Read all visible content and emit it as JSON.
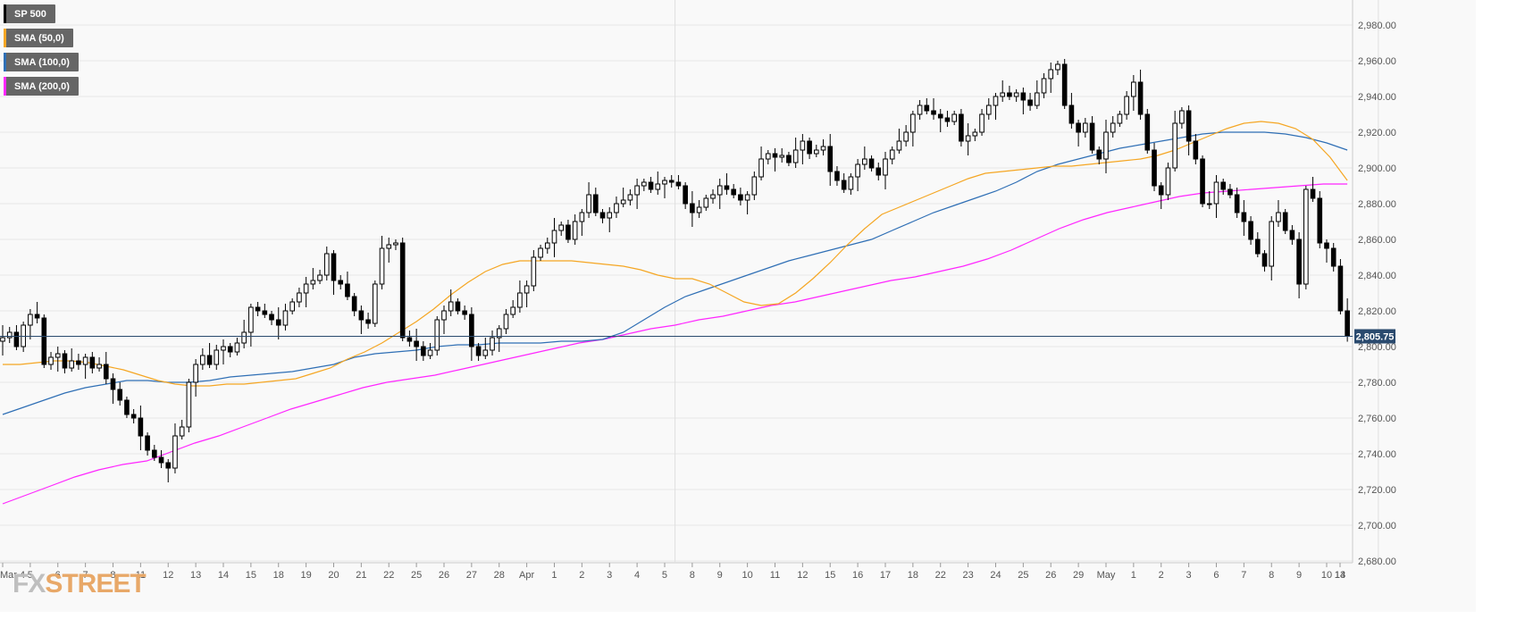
{
  "logo": {
    "fx": "FX",
    "street": "STREET"
  },
  "colors": {
    "candle_up_fill": "#ffffff",
    "candle_down_fill": "#000000",
    "sma50": "#f5a623",
    "sma100": "#2f6fb5",
    "sma200": "#ff26ff",
    "last_price_label_bg": "#2a4a6e",
    "grid": "#e6e6e6",
    "plot_bg": "#f9f9f9"
  },
  "legend": [
    {
      "label": "SP 500",
      "color": "#000000"
    },
    {
      "label": "SMA (50,0)",
      "color": "#f5a623"
    },
    {
      "label": "SMA (100,0)",
      "color": "#2f6fb5"
    },
    {
      "label": "SMA (200,0)",
      "color": "#ff26ff"
    }
  ],
  "chart_data": {
    "type": "candlestick",
    "title": "",
    "xlabel": "",
    "ylabel": "",
    "ylim": [
      2675,
      2985
    ],
    "grid": true,
    "last_price": 2805.75,
    "last_price_label": "2,805.75",
    "y_ticks": [
      "2,680.00",
      "2,700.00",
      "2,720.00",
      "2,740.00",
      "2,760.00",
      "2,780.00",
      "2,800.00",
      "2,820.00",
      "2,840.00",
      "2,860.00",
      "2,880.00",
      "2,900.00",
      "2,920.00",
      "2,940.00",
      "2,960.00",
      "2,980.00"
    ],
    "y_tick_values": [
      2680,
      2700,
      2720,
      2740,
      2760,
      2780,
      2800,
      2820,
      2840,
      2860,
      2880,
      2900,
      2920,
      2940,
      2960,
      2980
    ],
    "x_ticks": [
      "Mar 4",
      "5",
      "6",
      "7",
      "8",
      "11",
      "12",
      "13",
      "14",
      "15",
      "18",
      "19",
      "20",
      "21",
      "22",
      "25",
      "26",
      "27",
      "28",
      "Apr",
      "1",
      "2",
      "3",
      "4",
      "5",
      "8",
      "9",
      "10",
      "11",
      "12",
      "15",
      "16",
      "17",
      "18",
      "22",
      "23",
      "24",
      "25",
      "26",
      "29",
      "May",
      "1",
      "2",
      "3",
      "6",
      "7",
      "8",
      "9",
      "10",
      "13",
      "14"
    ],
    "x_tick_index": [
      0,
      4,
      8,
      12,
      16,
      20,
      24,
      28,
      32,
      36,
      40,
      44,
      48,
      52,
      56,
      60,
      64,
      68,
      72,
      76,
      80,
      84,
      88,
      92,
      96,
      100,
      104,
      108,
      112,
      116,
      120,
      124,
      128,
      132,
      136,
      140,
      144,
      148,
      152,
      156,
      160,
      164,
      168,
      172,
      176,
      180,
      184,
      188,
      192,
      196,
      200
    ],
    "x_separators": [
      98,
      200
    ],
    "closes": [
      2805,
      2808,
      2800,
      2812,
      2818,
      2816,
      2790,
      2794,
      2796,
      2788,
      2792,
      2790,
      2794,
      2788,
      2790,
      2782,
      2776,
      2770,
      2762,
      2760,
      2750,
      2742,
      2738,
      2735,
      2732,
      2750,
      2755,
      2780,
      2790,
      2795,
      2790,
      2798,
      2800,
      2797,
      2802,
      2808,
      2822,
      2820,
      2818,
      2815,
      2812,
      2820,
      2825,
      2830,
      2835,
      2837,
      2840,
      2852,
      2837,
      2835,
      2828,
      2820,
      2815,
      2813,
      2835,
      2855,
      2857,
      2858,
      2805,
      2803,
      2800,
      2795,
      2798,
      2815,
      2820,
      2825,
      2820,
      2818,
      2800,
      2795,
      2798,
      2805,
      2810,
      2818,
      2822,
      2830,
      2834,
      2850,
      2855,
      2858,
      2865,
      2868,
      2860,
      2870,
      2875,
      2885,
      2875,
      2872,
      2875,
      2880,
      2882,
      2885,
      2890,
      2892,
      2888,
      2891,
      2893,
      2892,
      2890,
      2880,
      2875,
      2878,
      2883,
      2885,
      2890,
      2888,
      2885,
      2882,
      2885,
      2895,
      2905,
      2908,
      2906,
      2907,
      2903,
      2910,
      2915,
      2908,
      2910,
      2912,
      2898,
      2893,
      2888,
      2895,
      2902,
      2905,
      2900,
      2896,
      2905,
      2910,
      2915,
      2920,
      2930,
      2935,
      2932,
      2930,
      2928,
      2926,
      2930,
      2915,
      2918,
      2920,
      2930,
      2935,
      2940,
      2942,
      2940,
      2942,
      2938,
      2935,
      2942,
      2950,
      2955,
      2958,
      2935,
      2925,
      2920,
      2925,
      2910,
      2905,
      2920,
      2925,
      2930,
      2940,
      2948,
      2930,
      2910,
      2890,
      2885,
      2900,
      2925,
      2932,
      2915,
      2905,
      2880,
      2880,
      2892,
      2888,
      2885,
      2875,
      2870,
      2860,
      2852,
      2845,
      2870,
      2875,
      2865,
      2860,
      2835,
      2888,
      2883,
      2858,
      2855,
      2845,
      2820,
      2805.75
    ],
    "sma50": [
      2790,
      2790,
      2791,
      2792,
      2792,
      2791,
      2789,
      2787,
      2784,
      2781,
      2779,
      2778,
      2778,
      2779,
      2779,
      2780,
      2781,
      2782,
      2785,
      2788,
      2793,
      2797,
      2802,
      2808,
      2814,
      2821,
      2829,
      2836,
      2842,
      2846,
      2848,
      2848,
      2848,
      2848,
      2847,
      2846,
      2845,
      2843,
      2840,
      2838,
      2838,
      2835,
      2830,
      2825,
      2823,
      2824,
      2830,
      2838,
      2847,
      2857,
      2866,
      2874,
      2878,
      2882,
      2886,
      2890,
      2894,
      2897,
      2898,
      2899,
      2900,
      2901,
      2901,
      2902,
      2903,
      2904,
      2905,
      2907,
      2910,
      2914,
      2918,
      2922,
      2925,
      2926,
      2925,
      2922,
      2916,
      2906,
      2893
    ],
    "sma100": [
      2762,
      2766,
      2770,
      2774,
      2777,
      2779,
      2781,
      2781,
      2780,
      2780,
      2781,
      2783,
      2784,
      2785,
      2786,
      2788,
      2790,
      2794,
      2796,
      2797,
      2798,
      2800,
      2801,
      2801,
      2802,
      2802,
      2802,
      2803,
      2803,
      2804,
      2808,
      2815,
      2822,
      2828,
      2832,
      2836,
      2840,
      2844,
      2848,
      2851,
      2854,
      2857,
      2860,
      2865,
      2870,
      2875,
      2879,
      2883,
      2887,
      2892,
      2898,
      2902,
      2905,
      2908,
      2911,
      2913,
      2915,
      2917,
      2919,
      2920,
      2920,
      2920,
      2919,
      2917,
      2914,
      2910
    ],
    "sma200": [
      2712,
      2717,
      2722,
      2727,
      2731,
      2734,
      2736,
      2741,
      2746,
      2750,
      2755,
      2760,
      2765,
      2769,
      2773,
      2777,
      2780,
      2782,
      2784,
      2787,
      2790,
      2793,
      2796,
      2799,
      2802,
      2804,
      2807,
      2810,
      2812,
      2815,
      2817,
      2820,
      2823,
      2825,
      2828,
      2831,
      2834,
      2837,
      2839,
      2842,
      2845,
      2849,
      2854,
      2860,
      2866,
      2871,
      2875,
      2878,
      2881,
      2884,
      2886,
      2887,
      2888,
      2889,
      2890,
      2891,
      2891
    ]
  }
}
